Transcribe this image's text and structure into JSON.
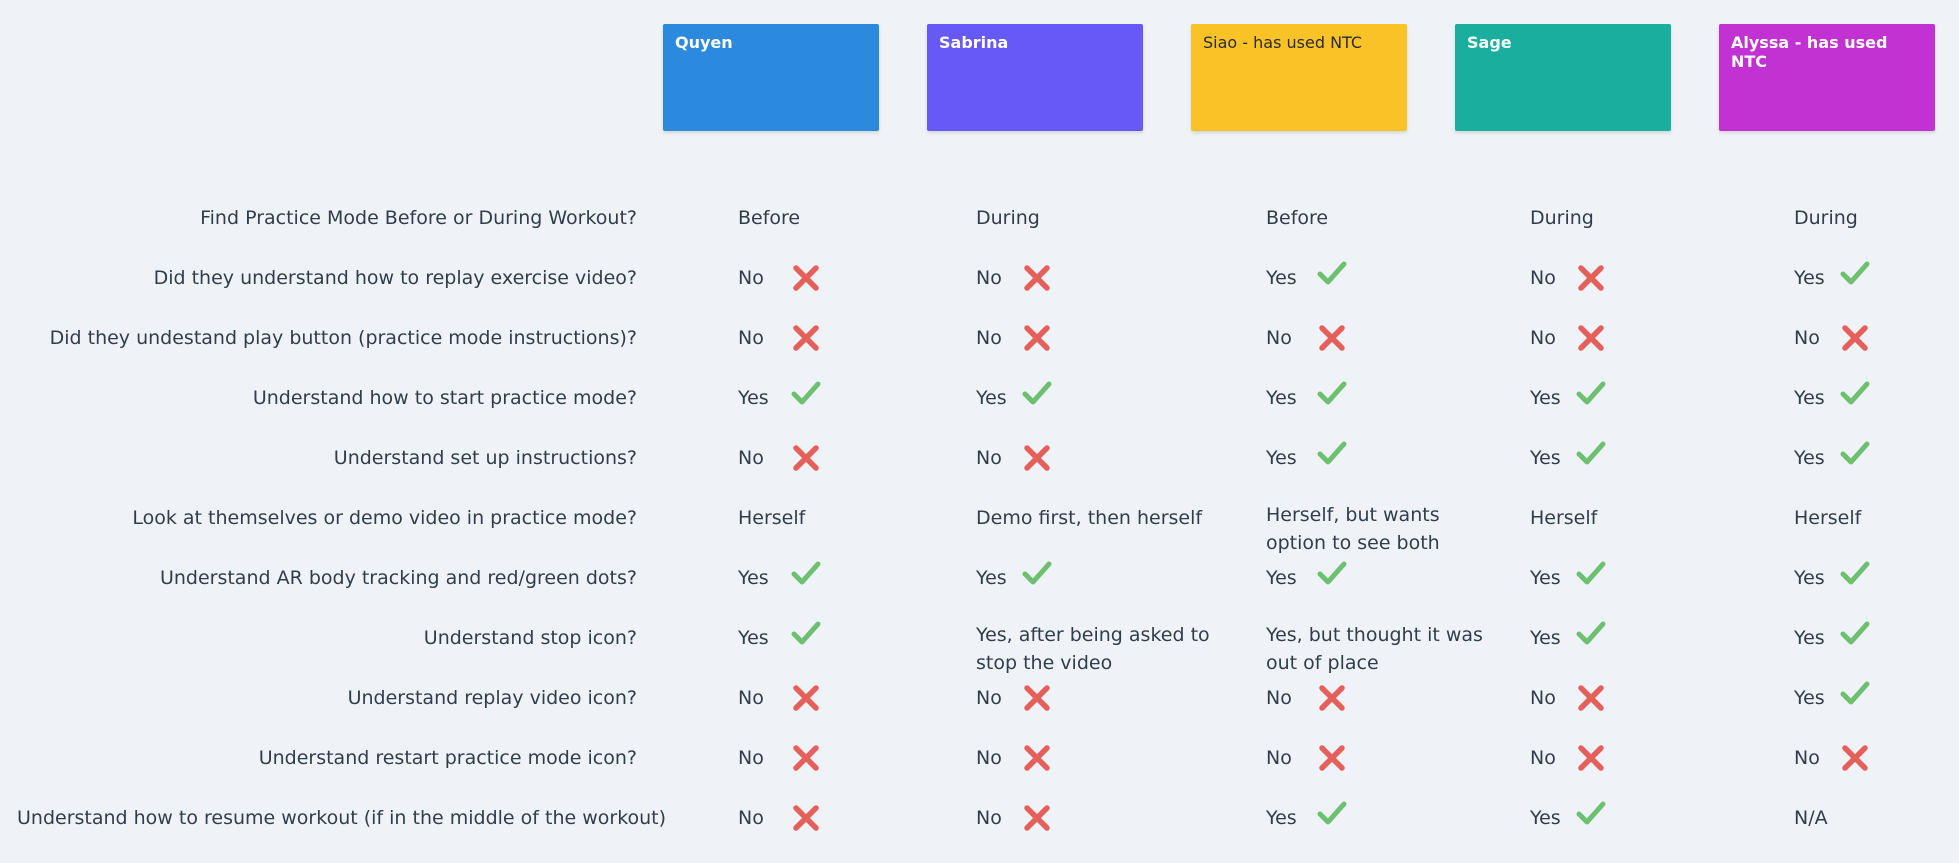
{
  "colors": {
    "background": "#eff3f7",
    "text": "#323d4c",
    "check": "#6cc070",
    "cross": "#e5605a"
  },
  "participants": [
    {
      "name": "Quyen",
      "color": "#2b8ade",
      "dark": false
    },
    {
      "name": "Sabrina",
      "color": "#6759f5",
      "dark": false
    },
    {
      "name": "Siao - has used NTC",
      "color": "#f9c327",
      "dark": true
    },
    {
      "name": "Sage",
      "color": "#19ae9e",
      "dark": false
    },
    {
      "name": "Alyssa - has used NTC",
      "color": "#c232d2",
      "dark": false
    }
  ],
  "questions": [
    "Find Practice Mode Before or During Workout?",
    "Did they understand how to replay exercise video?",
    "Did they undestand play button (practice mode instructions)?",
    "Understand how to start practice mode?",
    "Understand set up instructions?",
    "Look at themselves or demo video in practice mode?",
    "Understand AR body tracking and red/green dots?",
    "Understand stop icon?",
    "Understand replay video icon?",
    "Understand restart practice mode icon?",
    "Understand how to resume workout (if in the middle of the workout)"
  ],
  "answers": [
    [
      {
        "text": "Before",
        "icon": null
      },
      {
        "text": "During",
        "icon": null
      },
      {
        "text": "Before",
        "icon": null
      },
      {
        "text": "During",
        "icon": null
      },
      {
        "text": "During",
        "icon": null
      }
    ],
    [
      {
        "text": "No",
        "icon": "cross-icon"
      },
      {
        "text": "No",
        "icon": "cross-icon"
      },
      {
        "text": "Yes",
        "icon": "check-icon"
      },
      {
        "text": "No",
        "icon": "cross-icon"
      },
      {
        "text": "Yes",
        "icon": "check-icon"
      }
    ],
    [
      {
        "text": "No",
        "icon": "cross-icon"
      },
      {
        "text": "No",
        "icon": "cross-icon"
      },
      {
        "text": "No",
        "icon": "cross-icon"
      },
      {
        "text": "No",
        "icon": "cross-icon"
      },
      {
        "text": "No",
        "icon": "cross-icon"
      }
    ],
    [
      {
        "text": "Yes",
        "icon": "check-icon"
      },
      {
        "text": "Yes",
        "icon": "check-icon"
      },
      {
        "text": "Yes",
        "icon": "check-icon"
      },
      {
        "text": "Yes",
        "icon": "check-icon"
      },
      {
        "text": "Yes",
        "icon": "check-icon"
      }
    ],
    [
      {
        "text": "No",
        "icon": "cross-icon"
      },
      {
        "text": "No",
        "icon": "cross-icon"
      },
      {
        "text": "Yes",
        "icon": "check-icon"
      },
      {
        "text": "Yes",
        "icon": "check-icon"
      },
      {
        "text": "Yes",
        "icon": "check-icon"
      }
    ],
    [
      {
        "text": "Herself",
        "icon": null
      },
      {
        "text": "Demo first, then herself",
        "icon": null
      },
      {
        "text": "Herself, but wants option to see both",
        "lines": [
          "Herself, but wants",
          "option to see both"
        ],
        "icon": null
      },
      {
        "text": "Herself",
        "icon": null
      },
      {
        "text": "Herself",
        "icon": null
      }
    ],
    [
      {
        "text": "Yes",
        "icon": "check-icon"
      },
      {
        "text": "Yes",
        "icon": "check-icon"
      },
      {
        "text": "Yes",
        "icon": "check-icon"
      },
      {
        "text": "Yes",
        "icon": "check-icon"
      },
      {
        "text": "Yes",
        "icon": "check-icon"
      }
    ],
    [
      {
        "text": "Yes",
        "icon": "check-icon"
      },
      {
        "text": "Yes, after being asked to stop the video",
        "lines": [
          "Yes, after being asked to",
          "stop the video"
        ],
        "icon": null
      },
      {
        "text": "Yes, but thought it was out of place",
        "lines": [
          "Yes, but thought it was",
          "out of place"
        ],
        "icon": null
      },
      {
        "text": "Yes",
        "icon": "check-icon"
      },
      {
        "text": "Yes",
        "icon": "check-icon"
      }
    ],
    [
      {
        "text": "No",
        "icon": "cross-icon"
      },
      {
        "text": "No",
        "icon": "cross-icon"
      },
      {
        "text": "No",
        "icon": "cross-icon"
      },
      {
        "text": "No",
        "icon": "cross-icon"
      },
      {
        "text": "Yes",
        "icon": "check-icon"
      }
    ],
    [
      {
        "text": "No",
        "icon": "cross-icon"
      },
      {
        "text": "No",
        "icon": "cross-icon"
      },
      {
        "text": "No",
        "icon": "cross-icon"
      },
      {
        "text": "No",
        "icon": "cross-icon"
      },
      {
        "text": "No",
        "icon": "cross-icon"
      }
    ],
    [
      {
        "text": "No",
        "icon": "cross-icon"
      },
      {
        "text": "No",
        "icon": "cross-icon"
      },
      {
        "text": "Yes",
        "icon": "check-icon"
      },
      {
        "text": "Yes",
        "icon": "check-icon"
      },
      {
        "text": "N/A",
        "icon": null
      }
    ]
  ]
}
